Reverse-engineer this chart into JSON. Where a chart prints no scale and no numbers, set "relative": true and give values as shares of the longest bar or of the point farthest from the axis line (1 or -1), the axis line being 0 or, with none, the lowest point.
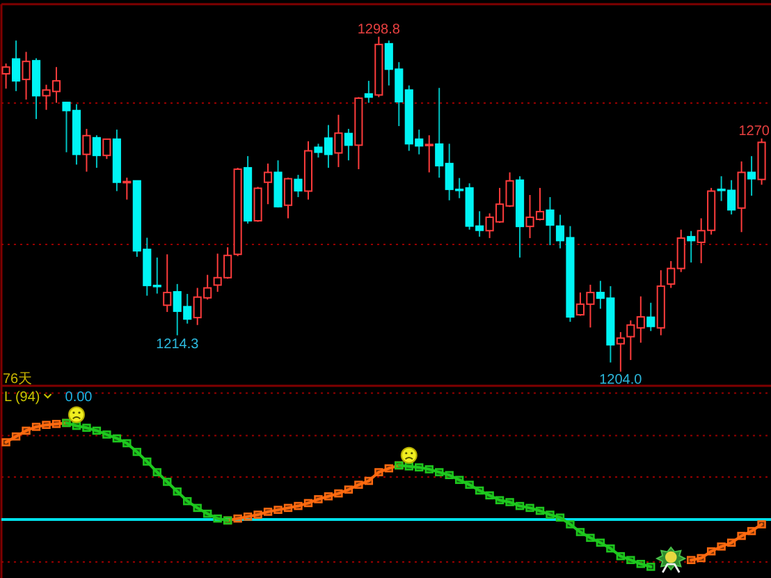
{
  "chart_data": [
    {
      "type": "candlestick",
      "categories": [
        null,
        null,
        null,
        null,
        null,
        null,
        null,
        null,
        null,
        null,
        null,
        null,
        null,
        null,
        null,
        null,
        null,
        null,
        null,
        null,
        null,
        null,
        null,
        null,
        null,
        null,
        null,
        null,
        null,
        null,
        null,
        null,
        null,
        null,
        null,
        null,
        null,
        null,
        null,
        null,
        null,
        null,
        null,
        null,
        null,
        null,
        null,
        null,
        null,
        null,
        null,
        null,
        null,
        null,
        null,
        null,
        null,
        null,
        null,
        null,
        null,
        null,
        null,
        null,
        null,
        null,
        null,
        null,
        null,
        null,
        null,
        null,
        null,
        null,
        null,
        null
      ],
      "ohlc": [
        [
          1288.3,
          1291.2,
          1284.1,
          1290.2
        ],
        [
          1292.5,
          1297.7,
          1283.4,
          1286.3
        ],
        [
          1286.7,
          1294.5,
          1281.0,
          1291.8
        ],
        [
          1292.0,
          1292.7,
          1275.5,
          1282.1
        ],
        [
          1282.1,
          1285.2,
          1278.1,
          1283.7
        ],
        [
          1283.3,
          1290.2,
          1280.1,
          1286.3
        ],
        [
          1280.2,
          1280.2,
          1266.1,
          1277.9
        ],
        [
          1277.9,
          1279.7,
          1262.6,
          1265.5
        ],
        [
          1265.5,
          1272.7,
          1260.6,
          1270.8
        ],
        [
          1270.2,
          1270.9,
          1261.7,
          1265.2
        ],
        [
          1265.2,
          1269.8,
          1264.2,
          1269.8
        ],
        [
          1269.8,
          1272.5,
          1255.1,
          1257.6
        ],
        [
          1257.6,
          1258.9,
          1252.7,
          1257.8
        ],
        [
          1258.0,
          1258.0,
          1236.5,
          1238.2
        ],
        [
          1238.6,
          1241.9,
          1225.5,
          1228.4
        ],
        [
          1228.4,
          1236.3,
          1226.1,
          1228.2
        ],
        [
          1222.8,
          1237.2,
          1220.9,
          1226.4
        ],
        [
          1226.6,
          1228.8,
          1214.3,
          1221.1
        ],
        [
          1222.4,
          1226.0,
          1217.6,
          1218.9
        ],
        [
          1219.3,
          1227.7,
          1217.2,
          1225.1
        ],
        [
          1224.9,
          1231.4,
          1224.4,
          1227.7
        ],
        [
          1228.5,
          1237.4,
          1226.6,
          1230.6
        ],
        [
          1230.6,
          1239.2,
          1230.3,
          1236.9
        ],
        [
          1237.2,
          1261.7,
          1236.7,
          1261.3
        ],
        [
          1261.7,
          1265.0,
          1245.9,
          1246.7
        ],
        [
          1246.7,
          1256.3,
          1246.4,
          1255.9
        ],
        [
          1257.6,
          1262.9,
          1251.4,
          1260.4
        ],
        [
          1260.4,
          1263.8,
          1250.5,
          1250.7
        ],
        [
          1251.1,
          1258.9,
          1247.4,
          1258.6
        ],
        [
          1258.4,
          1259.7,
          1253.4,
          1255.2
        ],
        [
          1255.1,
          1269.2,
          1252.7,
          1266.5
        ],
        [
          1267.5,
          1268.5,
          1264.6,
          1266.1
        ],
        [
          1270.1,
          1273.8,
          1261.7,
          1265.5
        ],
        [
          1265.9,
          1276.7,
          1261.9,
          1271.5
        ],
        [
          1271.4,
          1272.7,
          1263.8,
          1268.1
        ],
        [
          1268.1,
          1281.7,
          1261.3,
          1281.4
        ],
        [
          1282.6,
          1286.3,
          1280.1,
          1281.7
        ],
        [
          1282.3,
          1298.8,
          1281.7,
          1296.6
        ],
        [
          1296.8,
          1297.7,
          1285.0,
          1289.6
        ],
        [
          1289.6,
          1291.6,
          1273.5,
          1280.4
        ],
        [
          1283.7,
          1285.0,
          1266.5,
          1268.5
        ],
        [
          1269.8,
          1272.5,
          1265.5,
          1267.9
        ],
        [
          1268.0,
          1270.9,
          1260.4,
          1268.3
        ],
        [
          1268.4,
          1284.3,
          1258.9,
          1262.3
        ],
        [
          1262.9,
          1268.5,
          1252.5,
          1255.6
        ],
        [
          1255.6,
          1258.8,
          1253.1,
          1255.3
        ],
        [
          1256.0,
          1257.3,
          1244.2,
          1245.2
        ],
        [
          1245.2,
          1249.4,
          1242.2,
          1244.0
        ],
        [
          1243.9,
          1248.8,
          1241.8,
          1247.7
        ],
        [
          1246.4,
          1256.0,
          1246.1,
          1251.4
        ],
        [
          1250.9,
          1260.4,
          1250.6,
          1258.0
        ],
        [
          1258.2,
          1259.3,
          1236.3,
          1245.1
        ],
        [
          1245.1,
          1254.0,
          1241.8,
          1247.7
        ],
        [
          1247.1,
          1256.0,
          1246.8,
          1249.3
        ],
        [
          1249.7,
          1253.4,
          1239.8,
          1245.5
        ],
        [
          1245.2,
          1248.4,
          1238.9,
          1241.1
        ],
        [
          1241.9,
          1245.2,
          1218.1,
          1219.5
        ],
        [
          1220.1,
          1226.4,
          1219.8,
          1223.1
        ],
        [
          1223.1,
          1228.6,
          1216.5,
          1226.4
        ],
        [
          1226.4,
          1229.7,
          1221.8,
          1224.8
        ],
        [
          1224.8,
          1228.2,
          1206.6,
          1211.6
        ],
        [
          1211.9,
          1215.2,
          1204.0,
          1213.5
        ],
        [
          1213.9,
          1218.5,
          1207.3,
          1217.2
        ],
        [
          1216.4,
          1225.3,
          1212.2,
          1219.5
        ],
        [
          1219.4,
          1223.5,
          1215.5,
          1216.8
        ],
        [
          1216.4,
          1232.7,
          1214.3,
          1228.2
        ],
        [
          1228.8,
          1235.3,
          1227.7,
          1233.2
        ],
        [
          1233.2,
          1244.2,
          1232.2,
          1241.8
        ],
        [
          1242.2,
          1243.8,
          1234.9,
          1241.1
        ],
        [
          1240.6,
          1247.4,
          1234.7,
          1243.9
        ],
        [
          1244.0,
          1256.0,
          1242.8,
          1255.1
        ],
        [
          1255.6,
          1259.3,
          1252.3,
          1255.3
        ],
        [
          1255.3,
          1258.2,
          1248.5,
          1249.8
        ],
        [
          1250.3,
          1263.5,
          1243.5,
          1260.4
        ],
        [
          1260.4,
          1265.0,
          1253.8,
          1258.6
        ],
        [
          1258.4,
          1270.0,
          1256.9,
          1268.9
        ]
      ],
      "ylim": [
        1200,
        1308
      ],
      "yticks": [
        {
          "value": 1240,
          "label": null
        },
        {
          "value": 1280,
          "label": null
        }
      ],
      "grid": "y",
      "annotations": [
        {
          "text": "1298.8",
          "y": 1298.8
        },
        {
          "text": "1214.3",
          "y": 1214.3
        },
        {
          "text": "1204.0",
          "y": 1204.0
        },
        {
          "text": "1270",
          "y": 1270.0
        },
        "76天"
      ]
    },
    {
      "type": "line",
      "title": "L (94)",
      "categories": [
        null,
        null,
        null,
        null,
        null,
        null,
        null,
        null,
        null,
        null,
        null,
        null,
        null,
        null,
        null,
        null,
        null,
        null,
        null,
        null,
        null,
        null,
        null,
        null,
        null,
        null,
        null,
        null,
        null,
        null,
        null,
        null,
        null,
        null,
        null,
        null,
        null,
        null,
        null,
        null,
        null,
        null,
        null,
        null,
        null,
        null,
        null,
        null,
        null,
        null,
        null,
        null,
        null,
        null,
        null,
        null,
        null,
        null,
        null,
        null,
        null,
        null,
        null,
        null,
        null,
        null,
        null,
        null,
        null,
        null,
        null,
        null,
        null,
        null,
        null,
        null
      ],
      "relative": true,
      "marker": "square",
      "series": [
        {
          "color": "#ff6a10",
          "values": [
            0.8,
            0.86,
            0.92,
            0.96,
            0.98,
            0.99,
            1,
            null,
            null,
            null,
            null,
            null,
            null,
            null,
            null,
            null,
            null,
            null,
            null,
            null,
            null,
            null,
            -0.01,
            0.01,
            0.03,
            0.05,
            0.08,
            0.1,
            0.12,
            0.14,
            0.17,
            0.21,
            0.24,
            0.27,
            0.31,
            0.36,
            0.4,
            0.49,
            0.53,
            0.56,
            null,
            null,
            null,
            null,
            null,
            null,
            null,
            null,
            null,
            null,
            null,
            null,
            null,
            null,
            null,
            null,
            null,
            null,
            null,
            null,
            null,
            null,
            null,
            null,
            null,
            null,
            null,
            null,
            -0.42,
            -0.4,
            -0.33,
            -0.28,
            -0.24,
            -0.17,
            -0.12,
            -0.05
          ]
        },
        {
          "color": "#1ec81e",
          "values": [
            null,
            null,
            null,
            null,
            null,
            null,
            1,
            0.97,
            0.95,
            0.92,
            0.88,
            0.84,
            0.79,
            0.7,
            0.6,
            0.49,
            0.39,
            0.29,
            0.19,
            0.12,
            0.06,
            0.01,
            -0.01,
            null,
            null,
            null,
            null,
            null,
            null,
            null,
            null,
            null,
            null,
            null,
            null,
            null,
            null,
            null,
            null,
            0.56,
            0.55,
            0.54,
            0.52,
            0.49,
            0.46,
            0.41,
            0.36,
            0.3,
            0.25,
            0.2,
            0.18,
            0.14,
            0.12,
            0.09,
            0.05,
            0.02,
            -0.05,
            -0.13,
            -0.19,
            -0.24,
            -0.3,
            -0.38,
            -0.42,
            -0.46,
            -0.49,
            null,
            null,
            null,
            null,
            null,
            null,
            null,
            null,
            null,
            null,
            null
          ]
        }
      ],
      "ref_lines": [
        {
          "axis": "y",
          "value": 1.31,
          "color": "#960000",
          "line_style": "dotted"
        },
        {
          "axis": "y",
          "value": 0.87,
          "color": "#960000",
          "line_style": "dotted"
        },
        {
          "axis": "y",
          "value": 0.44,
          "color": "#960000",
          "line_style": "dotted"
        },
        {
          "axis": "y",
          "value": 0,
          "color": "#00e0ea"
        },
        {
          "axis": "y",
          "value": -0.44,
          "color": "#960000",
          "line_style": "dotted"
        }
      ],
      "annotations": [
        "0.00"
      ]
    }
  ]
}
